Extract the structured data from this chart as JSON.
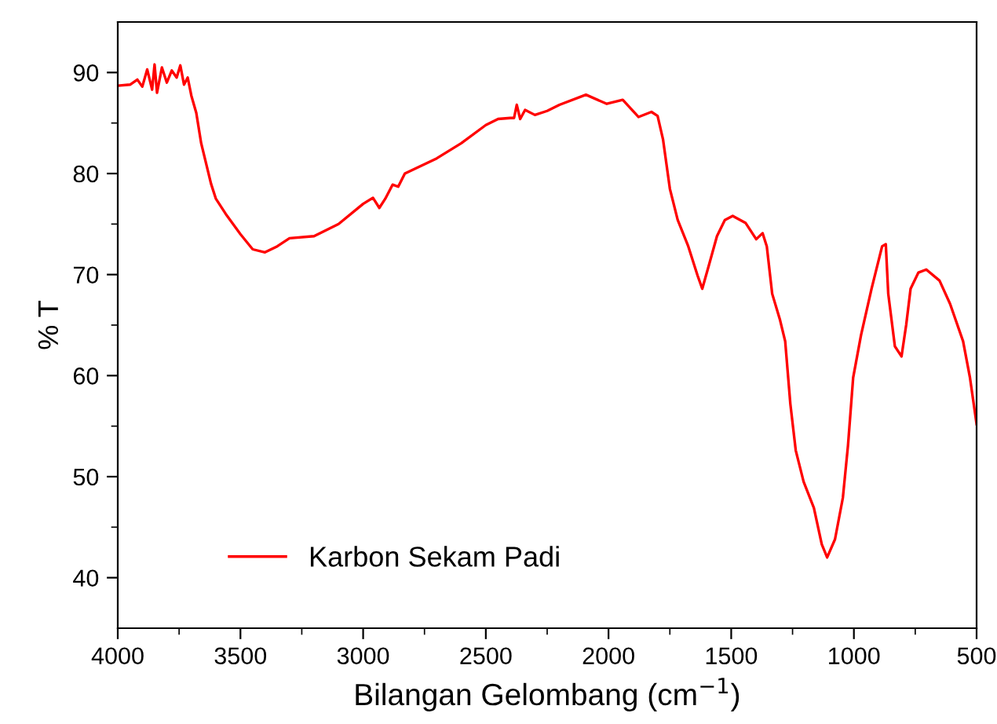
{
  "chart_data": {
    "type": "line",
    "xlabel": "Bilangan Gelombang (cm$^{−1}$)",
    "ylabel": "% T",
    "xlim": [
      4000,
      500
    ],
    "ylim": [
      35,
      95
    ],
    "xticks": [
      4000,
      {
        "value": 3750,
        "label": null
      },
      3500,
      {
        "value": 3250,
        "label": null
      },
      3000,
      {
        "value": 2750,
        "label": null
      },
      2500,
      {
        "value": 2250,
        "label": null
      },
      2000,
      {
        "value": 1750,
        "label": null
      },
      1500,
      {
        "value": 1250,
        "label": null
      },
      1000,
      {
        "value": 750,
        "label": null
      },
      500
    ],
    "yticks": [
      40,
      {
        "value": 45,
        "label": null
      },
      50,
      {
        "value": 55,
        "label": null
      },
      60,
      {
        "value": 65,
        "label": null
      },
      70,
      {
        "value": 75,
        "label": null
      },
      80,
      {
        "value": 85,
        "label": null
      },
      90
    ],
    "grid": false,
    "legend": "bottom left",
    "line_style": "solid",
    "marker": "none",
    "series": [
      {
        "name": "Karbon Sekam Padi",
        "color": "#ff0000",
        "x": [
          4000,
          3950,
          3920,
          3900,
          3880,
          3860,
          3850,
          3840,
          3820,
          3800,
          3780,
          3760,
          3745,
          3730,
          3715,
          3700,
          3680,
          3660,
          3640,
          3620,
          3600,
          3560,
          3500,
          3450,
          3400,
          3350,
          3300,
          3200,
          3100,
          3000,
          2960,
          2934,
          2910,
          2880,
          2857,
          2830,
          2700,
          2600,
          2500,
          2450,
          2400,
          2385,
          2374,
          2360,
          2340,
          2300,
          2250,
          2200,
          2092,
          2007,
          1942,
          1878,
          1825,
          1800,
          1778,
          1750,
          1718,
          1675,
          1637,
          1618,
          1590,
          1558,
          1526,
          1494,
          1441,
          1398,
          1372,
          1355,
          1333,
          1301,
          1280,
          1259,
          1237,
          1205,
          1163,
          1131,
          1109,
          1077,
          1045,
          1024,
          1003,
          971,
          928,
          885,
          870,
          860,
          833,
          806,
          787,
          769,
          737,
          705,
          651,
          608,
          555,
          527,
          500
        ],
        "values": [
          88.7,
          88.8,
          89.3,
          88.6,
          90.3,
          88.3,
          90.8,
          88.0,
          90.5,
          89.0,
          90.2,
          89.5,
          90.7,
          88.8,
          89.5,
          87.7,
          86.0,
          83.0,
          81.0,
          79.0,
          77.5,
          76.0,
          74.0,
          72.5,
          72.2,
          72.8,
          73.6,
          73.8,
          75.0,
          77.0,
          77.6,
          76.6,
          77.5,
          78.9,
          78.7,
          80.0,
          81.5,
          83.0,
          84.8,
          85.4,
          85.5,
          85.5,
          86.8,
          85.4,
          86.3,
          85.8,
          86.2,
          86.8,
          87.8,
          86.9,
          87.3,
          85.6,
          86.1,
          85.7,
          83.4,
          78.5,
          75.4,
          72.8,
          69.9,
          68.6,
          71.0,
          73.8,
          75.4,
          75.8,
          75.1,
          73.5,
          74.1,
          72.8,
          68.1,
          65.5,
          63.4,
          57.2,
          52.6,
          49.5,
          46.9,
          43.3,
          42.0,
          43.8,
          47.9,
          53.1,
          59.8,
          64.0,
          68.6,
          72.8,
          73.0,
          68.1,
          62.9,
          61.9,
          65.0,
          68.6,
          70.2,
          70.5,
          69.4,
          67.1,
          63.4,
          59.8,
          55.2
        ]
      }
    ]
  }
}
